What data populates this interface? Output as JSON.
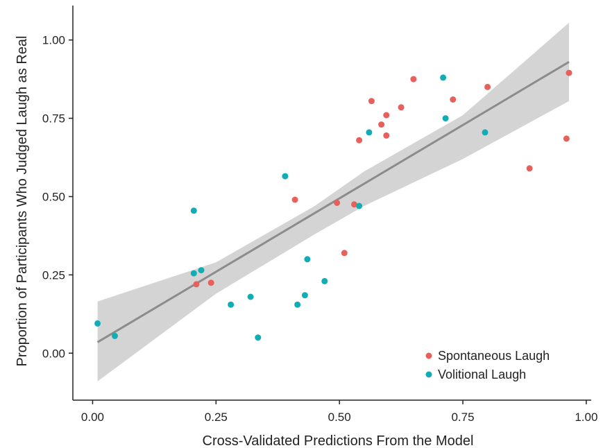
{
  "chart_data": {
    "type": "scatter",
    "title": "",
    "xlabel": "Cross-Validated Predictions From the Model",
    "ylabel": "Proportion of Participants Who Judged Laugh as Real",
    "xlim": [
      -0.04,
      1.01
    ],
    "ylim": [
      -0.15,
      1.11
    ],
    "x_ticks": [
      "0.00",
      "0.25",
      "0.50",
      "0.75",
      "1.00"
    ],
    "y_ticks": [
      "0.00",
      "0.25",
      "0.50",
      "0.75",
      "1.00"
    ],
    "grid": false,
    "legend_position": "bottom-right",
    "colors": {
      "Spontaneous Laugh": "#e8605c",
      "Volitional Laugh": "#12acb4",
      "fit_line": "#8c8c8c",
      "band": "#cfcfcf"
    },
    "series": [
      {
        "name": "Spontaneous Laugh",
        "points": [
          [
            0.21,
            0.22
          ],
          [
            0.24,
            0.225
          ],
          [
            0.41,
            0.49
          ],
          [
            0.495,
            0.48
          ],
          [
            0.51,
            0.32
          ],
          [
            0.53,
            0.475
          ],
          [
            0.54,
            0.68
          ],
          [
            0.565,
            0.805
          ],
          [
            0.585,
            0.73
          ],
          [
            0.595,
            0.76
          ],
          [
            0.595,
            0.695
          ],
          [
            0.625,
            0.785
          ],
          [
            0.65,
            0.875
          ],
          [
            0.73,
            0.81
          ],
          [
            0.8,
            0.85
          ],
          [
            0.885,
            0.59
          ],
          [
            0.96,
            0.685
          ],
          [
            0.965,
            0.895
          ]
        ]
      },
      {
        "name": "Volitional Laugh",
        "points": [
          [
            0.01,
            0.095
          ],
          [
            0.045,
            0.055
          ],
          [
            0.205,
            0.455
          ],
          [
            0.205,
            0.255
          ],
          [
            0.22,
            0.265
          ],
          [
            0.28,
            0.155
          ],
          [
            0.32,
            0.18
          ],
          [
            0.335,
            0.05
          ],
          [
            0.39,
            0.565
          ],
          [
            0.415,
            0.155
          ],
          [
            0.43,
            0.185
          ],
          [
            0.435,
            0.3
          ],
          [
            0.47,
            0.23
          ],
          [
            0.54,
            0.47
          ],
          [
            0.56,
            0.705
          ],
          [
            0.71,
            0.88
          ],
          [
            0.715,
            0.75
          ],
          [
            0.795,
            0.705
          ]
        ]
      }
    ],
    "fit_line": {
      "x": [
        0.01,
        0.965
      ],
      "y": [
        0.035,
        0.93
      ]
    },
    "confidence_band": {
      "x": [
        0.01,
        0.25,
        0.45,
        0.55,
        0.75,
        0.965
      ],
      "lower": [
        -0.09,
        0.19,
        0.38,
        0.47,
        0.62,
        0.805
      ],
      "upper": [
        0.165,
        0.29,
        0.47,
        0.58,
        0.76,
        1.055
      ]
    }
  }
}
